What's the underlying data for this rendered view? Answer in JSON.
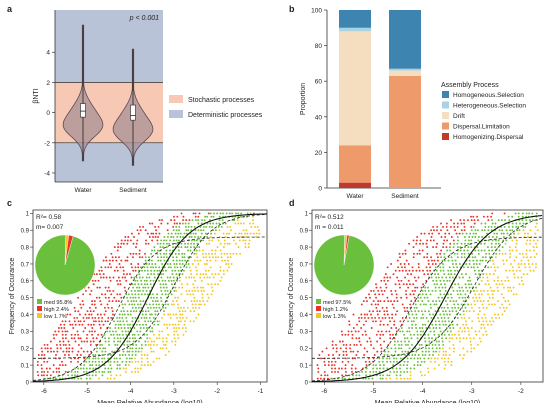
{
  "chart_data": [
    {
      "panel": "a",
      "type": "violin",
      "ylabel": "βNTI",
      "annotation": "p < 0.001",
      "categories": [
        "Water",
        "Sediment"
      ],
      "yticks": [
        -4,
        -2,
        0,
        2,
        4
      ],
      "ylim": [
        -4.6,
        6.8
      ],
      "thresholds": [
        -2,
        2
      ],
      "legend": [
        {
          "label": "Stochastic processes",
          "color": "#f7c9b5"
        },
        {
          "label": "Deterministic processes",
          "color": "#b9c3d8"
        }
      ],
      "series": [
        {
          "name": "Water",
          "min": -3.2,
          "q1": -0.3,
          "median": 0.1,
          "q3": 0.6,
          "max": 5.8,
          "mode": -1.0
        },
        {
          "name": "Sediment",
          "min": -3.5,
          "q1": -0.5,
          "median": -0.2,
          "q3": 0.5,
          "max": 4.2,
          "mode": -1.3
        }
      ]
    },
    {
      "panel": "b",
      "type": "bar",
      "stacked": true,
      "ylabel": "Proportion",
      "categories": [
        "Water",
        "Sediment"
      ],
      "yticks": [
        0,
        20,
        40,
        60,
        80,
        100
      ],
      "ylim": [
        0,
        100
      ],
      "legend_title": "Assembly Process",
      "series": [
        {
          "name": "Homogenizing.Dispersal",
          "color": "#c0392b",
          "values": [
            3,
            0
          ]
        },
        {
          "name": "Dispersal.Limitation",
          "color": "#ef9a6b",
          "values": [
            21,
            63
          ]
        },
        {
          "name": "Drift",
          "color": "#f5dec0",
          "values": [
            64,
            3
          ]
        },
        {
          "name": "Heterogeneous.Selection",
          "color": "#a9d3e3",
          "values": [
            2,
            1
          ]
        },
        {
          "name": "Homogeneous.Selection",
          "color": "#3d85b0",
          "values": [
            10,
            33
          ]
        }
      ]
    },
    {
      "panel": "c",
      "type": "scatter",
      "xlabel": "Mean Relative Abundance (log10)",
      "ylabel": "Frequency of Occurance",
      "xticks": [
        -6,
        -5,
        -4,
        -3,
        -2,
        -1
      ],
      "yticks": [
        0,
        0.1,
        0.2,
        0.3,
        0.4,
        0.5,
        0.6,
        0.7,
        0.8,
        0.9,
        1
      ],
      "xlim": [
        -6.25,
        -0.85
      ],
      "ylim": [
        0,
        1.02
      ],
      "r2": "R²= 0.58",
      "m": "m= 0.007",
      "fit_center": -3.6,
      "fit_slope": 2.1,
      "upper_dashed": 0.86,
      "lower_dashed": 0.14,
      "point_xmax": -1.0,
      "pie": [
        {
          "label": "med 95.8%",
          "value": 95.8,
          "color": "#6abf3c"
        },
        {
          "label": "high 2.4%",
          "value": 2.4,
          "color": "#e8332a"
        },
        {
          "label": "low  1.7%",
          "value": 1.7,
          "color": "#f3c623"
        }
      ]
    },
    {
      "panel": "d",
      "type": "scatter",
      "xlabel": "Mean Relative Abundance (log10)",
      "ylabel": "Frequency of Occurance",
      "xticks": [
        -6,
        -5,
        -4,
        -3,
        -2
      ],
      "yticks": [
        0,
        0.1,
        0.2,
        0.3,
        0.4,
        0.5,
        0.6,
        0.7,
        0.8,
        0.9,
        1
      ],
      "xlim": [
        -6.25,
        -1.55
      ],
      "ylim": [
        0,
        1.02
      ],
      "r2": "R²= 0.512",
      "m": "m = 0.011",
      "fit_center": -3.55,
      "fit_slope": 2.2,
      "upper_dashed": 0.86,
      "lower_dashed": 0.14,
      "point_xmax": -1.65,
      "pie": [
        {
          "label": "med  97.5%",
          "value": 97.5,
          "color": "#6abf3c"
        },
        {
          "label": "high  1.2%",
          "value": 1.2,
          "color": "#e8332a"
        },
        {
          "label": "low   1.3%",
          "value": 1.3,
          "color": "#f3c623"
        }
      ]
    }
  ]
}
